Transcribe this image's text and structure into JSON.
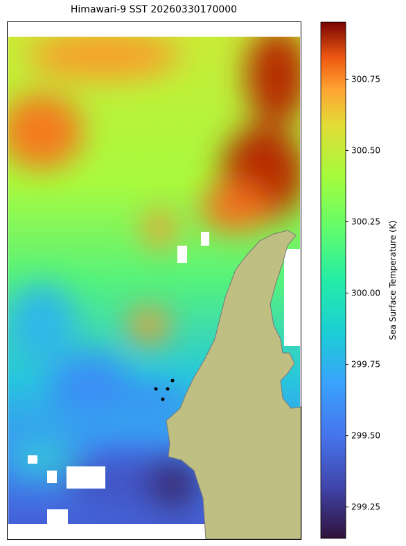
{
  "title": "Himawari-9 SST 20260330170000",
  "colorbar": {
    "label": "Sea Surface Temperature (K)",
    "lim": [
      299.14,
      300.95
    ],
    "ticks": [
      299.25,
      {
        "value": 299.5,
        "label": "299.50"
      },
      299.75,
      {
        "value": 300,
        "label": "300.00"
      },
      300.25,
      {
        "value": 300.5,
        "label": "300.50"
      },
      300.75
    ]
  }
}
